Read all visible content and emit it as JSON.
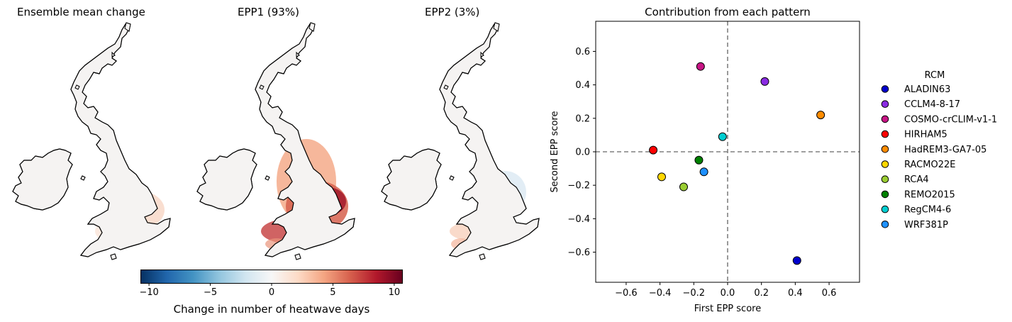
{
  "maps": [
    {
      "id": "mean",
      "title": "Ensemble mean change"
    },
    {
      "id": "epp1",
      "title": "EPP1 (93%)"
    },
    {
      "id": "epp2",
      "title": "EPP2 (3%)"
    }
  ],
  "colorbar": {
    "label": "Change in number of heatwave days",
    "ticks": [
      -10,
      -5,
      0,
      5,
      10
    ],
    "range": [
      -10.7,
      10.7
    ],
    "cmap": "RdBu_r",
    "colors": [
      "#053061",
      "#2166ac",
      "#4393c3",
      "#92c5de",
      "#d1e5f0",
      "#f7f7f7",
      "#fddbc7",
      "#f4a582",
      "#d6604d",
      "#b2182b",
      "#67001f"
    ]
  },
  "chart_data": {
    "type": "scatter",
    "title": "Contribution from each pattern",
    "xlabel": "First EPP score",
    "ylabel": "Second EPP score",
    "xlim": [
      -0.78,
      0.78
    ],
    "ylim": [
      -0.78,
      0.78
    ],
    "xticks": [
      -0.6,
      -0.4,
      -0.2,
      0.0,
      0.2,
      0.4,
      0.6
    ],
    "yticks": [
      -0.6,
      -0.4,
      -0.2,
      0.0,
      0.2,
      0.4,
      0.6
    ],
    "reference_lines": {
      "x": 0,
      "y": 0,
      "style": "dashed"
    },
    "legend": {
      "title": "RCM",
      "placement": "outside-right"
    },
    "points": [
      {
        "name": "ALADIN63",
        "x": 0.41,
        "y": -0.65,
        "color": "#0000cd"
      },
      {
        "name": "CCLM4-8-17",
        "x": 0.22,
        "y": 0.42,
        "color": "#8a2be2"
      },
      {
        "name": "COSMO-crCLIM-v1-1",
        "x": -0.16,
        "y": 0.51,
        "color": "#c71585"
      },
      {
        "name": "HIRHAM5",
        "x": -0.44,
        "y": 0.01,
        "color": "#ff0000"
      },
      {
        "name": "HadREM3-GA7-05",
        "x": 0.55,
        "y": 0.22,
        "color": "#ff8c00"
      },
      {
        "name": "RACMO22E",
        "x": -0.39,
        "y": -0.15,
        "color": "#ffd700"
      },
      {
        "name": "RCA4",
        "x": -0.26,
        "y": -0.21,
        "color": "#9acd32"
      },
      {
        "name": "REMO2015",
        "x": -0.17,
        "y": -0.05,
        "color": "#008000"
      },
      {
        "name": "RegCM4-6",
        "x": -0.03,
        "y": 0.09,
        "color": "#00ced1"
      },
      {
        "name": "WRF381P",
        "x": -0.14,
        "y": -0.12,
        "color": "#1e90ff"
      }
    ]
  }
}
